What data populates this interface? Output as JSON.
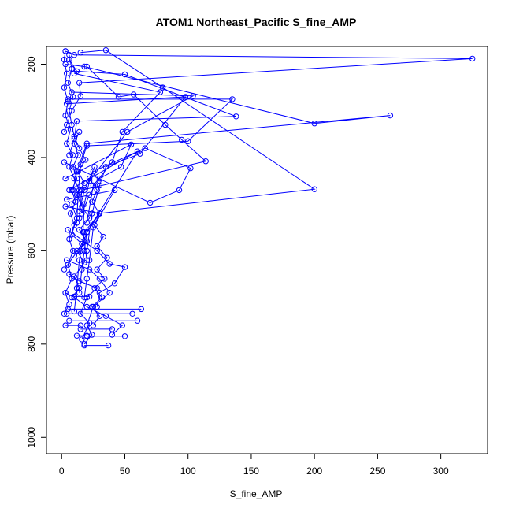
{
  "chart_data": {
    "type": "scatter",
    "title": "ATOM1 Northeast_Pacific S_fine_AMP",
    "xlabel": "S_fine_AMP",
    "ylabel": "Pressure (mbar)",
    "xlim": [
      -12,
      337
    ],
    "ylim": [
      1035,
      162
    ],
    "y_reversed": true,
    "x_ticks": [
      0,
      50,
      100,
      150,
      200,
      250,
      300
    ],
    "y_ticks": [
      200,
      400,
      600,
      800,
      1000
    ],
    "grid": false,
    "color": "#0000ff",
    "marker": "open-circle",
    "connected_by_lines": true,
    "series": [
      {
        "values": [
          [
            3,
            172
          ],
          [
            10,
            180
          ],
          [
            325,
            188
          ],
          [
            14,
            240
          ],
          [
            15,
            268
          ],
          [
            8,
            300
          ],
          [
            4,
            330
          ],
          [
            2,
            345
          ]
        ]
      },
      {
        "values": [
          [
            6,
            190
          ],
          [
            12,
            215
          ],
          [
            50,
            222
          ],
          [
            138,
            312
          ],
          [
            12,
            322
          ],
          [
            10,
            360
          ],
          [
            6,
            395
          ]
        ]
      },
      {
        "values": [
          [
            3,
            200
          ],
          [
            18,
            205
          ],
          [
            200,
            327
          ],
          [
            260,
            310
          ],
          [
            20,
            370
          ],
          [
            12,
            430
          ],
          [
            9,
            470
          ]
        ]
      },
      {
        "values": [
          [
            15,
            175
          ],
          [
            35,
            170
          ],
          [
            80,
            250
          ],
          [
            200,
            468
          ],
          [
            30,
            520
          ],
          [
            20,
            560
          ],
          [
            15,
            600
          ]
        ]
      },
      {
        "values": [
          [
            20,
            205
          ],
          [
            45,
            270
          ],
          [
            57,
            265
          ],
          [
            82,
            330
          ],
          [
            95,
            362
          ],
          [
            114,
            408
          ],
          [
            16,
            470
          ],
          [
            14,
            530
          ]
        ]
      },
      {
        "values": [
          [
            5,
            275
          ],
          [
            135,
            275
          ],
          [
            100,
            365
          ],
          [
            20,
            375
          ],
          [
            15,
            415
          ],
          [
            13,
            480
          ],
          [
            12,
            540
          ]
        ]
      },
      {
        "values": [
          [
            8,
            260
          ],
          [
            104,
            268
          ],
          [
            52,
            345
          ],
          [
            22,
            450
          ],
          [
            18,
            500
          ],
          [
            17,
            560
          ],
          [
            20,
            620
          ]
        ]
      },
      {
        "values": [
          [
            4,
            285
          ],
          [
            98,
            270
          ],
          [
            62,
            392
          ],
          [
            35,
            420
          ],
          [
            30,
            460
          ],
          [
            24,
            520
          ],
          [
            20,
            600
          ]
        ]
      },
      {
        "values": [
          [
            10,
            220
          ],
          [
            78,
            260
          ],
          [
            48,
            345
          ],
          [
            40,
            410
          ],
          [
            25,
            460
          ],
          [
            20,
            540
          ]
        ]
      },
      {
        "values": [
          [
            2,
            410
          ],
          [
            70,
            497
          ],
          [
            93,
            470
          ],
          [
            102,
            423
          ],
          [
            66,
            380
          ],
          [
            25,
            430
          ],
          [
            18,
            470
          ],
          [
            14,
            515
          ]
        ]
      },
      {
        "values": [
          [
            3,
            445
          ],
          [
            55,
            372
          ],
          [
            47,
            420
          ],
          [
            30,
            445
          ],
          [
            22,
            480
          ],
          [
            16,
            520
          ]
        ]
      },
      {
        "values": [
          [
            6,
            470
          ],
          [
            60,
            387
          ],
          [
            20,
            560
          ],
          [
            18,
            600
          ],
          [
            16,
            640
          ],
          [
            14,
            690
          ]
        ]
      },
      {
        "values": [
          [
            4,
            490
          ],
          [
            42,
            470
          ],
          [
            25,
            550
          ],
          [
            22,
            620
          ],
          [
            20,
            660
          ],
          [
            18,
            700
          ]
        ]
      },
      {
        "values": [
          [
            3,
            505
          ],
          [
            30,
            520
          ],
          [
            18,
            560
          ],
          [
            14,
            620
          ],
          [
            12,
            680
          ],
          [
            10,
            730
          ]
        ]
      },
      {
        "values": [
          [
            5,
            555
          ],
          [
            28,
            600
          ],
          [
            38,
            628
          ],
          [
            50,
            635
          ],
          [
            42,
            670
          ],
          [
            30,
            690
          ],
          [
            28,
            720
          ]
        ]
      },
      {
        "values": [
          [
            4,
            620
          ],
          [
            22,
            640
          ],
          [
            30,
            660
          ],
          [
            38,
            690
          ],
          [
            25,
            720
          ],
          [
            20,
            760
          ],
          [
            24,
            780
          ],
          [
            18,
            800
          ]
        ]
      },
      {
        "values": [
          [
            6,
            650
          ],
          [
            14,
            665
          ],
          [
            28,
            680
          ],
          [
            20,
            700
          ],
          [
            15,
            735
          ],
          [
            22,
            755
          ],
          [
            16,
            790
          ]
        ]
      },
      {
        "values": [
          [
            3,
            690
          ],
          [
            10,
            700
          ],
          [
            20,
            720
          ],
          [
            35,
            740
          ],
          [
            48,
            760
          ],
          [
            40,
            780
          ]
        ]
      },
      {
        "values": [
          [
            10,
            698
          ],
          [
            22,
            698
          ]
        ]
      },
      {
        "values": [
          [
            5,
            725
          ],
          [
            63,
            725
          ]
        ]
      },
      {
        "values": [
          [
            4,
            735
          ],
          [
            56,
            735
          ]
        ]
      },
      {
        "values": [
          [
            6,
            750
          ],
          [
            60,
            750
          ]
        ]
      },
      {
        "values": [
          [
            3,
            760
          ],
          [
            15,
            760
          ]
        ]
      },
      {
        "values": [
          [
            18,
            803
          ],
          [
            37,
            803
          ]
        ]
      },
      {
        "values": [
          [
            20,
            783
          ],
          [
            50,
            783
          ]
        ]
      },
      {
        "values": [
          [
            12,
            782
          ],
          [
            20,
            782
          ]
        ]
      },
      {
        "values": [
          [
            15,
            768
          ],
          [
            40,
            768
          ]
        ]
      },
      {
        "values": [
          [
            2,
            640
          ],
          [
            10,
            610
          ],
          [
            16,
            585
          ],
          [
            8,
            565
          ],
          [
            12,
            530
          ],
          [
            8,
            500
          ],
          [
            14,
            470
          ],
          [
            10,
            445
          ],
          [
            6,
            420
          ],
          [
            9,
            395
          ],
          [
            4,
            370
          ],
          [
            7,
            340
          ],
          [
            3,
            310
          ],
          [
            5,
            280
          ],
          [
            2,
            250
          ],
          [
            4,
            220
          ],
          [
            2,
            190
          ],
          [
            3,
            172
          ]
        ]
      },
      {
        "values": [
          [
            8,
            700
          ],
          [
            14,
            680
          ],
          [
            10,
            655
          ],
          [
            18,
            625
          ],
          [
            12,
            600
          ],
          [
            20,
            580
          ],
          [
            14,
            555
          ],
          [
            22,
            530
          ],
          [
            16,
            505
          ],
          [
            12,
            480
          ],
          [
            18,
            455
          ],
          [
            13,
            430
          ],
          [
            19,
            405
          ],
          [
            14,
            380
          ],
          [
            10,
            355
          ],
          [
            8,
            330
          ],
          [
            6,
            300
          ],
          [
            9,
            270
          ],
          [
            5,
            240
          ],
          [
            8,
            210
          ],
          [
            6,
            180
          ]
        ]
      },
      {
        "values": [
          [
            25,
            760
          ],
          [
            30,
            740
          ],
          [
            24,
            720
          ],
          [
            32,
            700
          ],
          [
            26,
            680
          ],
          [
            34,
            660
          ],
          [
            28,
            640
          ],
          [
            36,
            615
          ],
          [
            28,
            590
          ],
          [
            33,
            570
          ],
          [
            26,
            545
          ],
          [
            30,
            520
          ],
          [
            24,
            495
          ],
          [
            28,
            470
          ],
          [
            22,
            445
          ],
          [
            26,
            420
          ]
        ]
      },
      {
        "values": [
          [
            2,
            735
          ],
          [
            6,
            715
          ],
          [
            3,
            690
          ],
          [
            8,
            660
          ],
          [
            5,
            630
          ],
          [
            9,
            600
          ],
          [
            6,
            575
          ],
          [
            10,
            545
          ],
          [
            7,
            520
          ],
          [
            11,
            495
          ],
          [
            8,
            470
          ],
          [
            12,
            445
          ],
          [
            9,
            420
          ],
          [
            13,
            395
          ],
          [
            10,
            370
          ],
          [
            14,
            345
          ]
        ]
      }
    ]
  }
}
